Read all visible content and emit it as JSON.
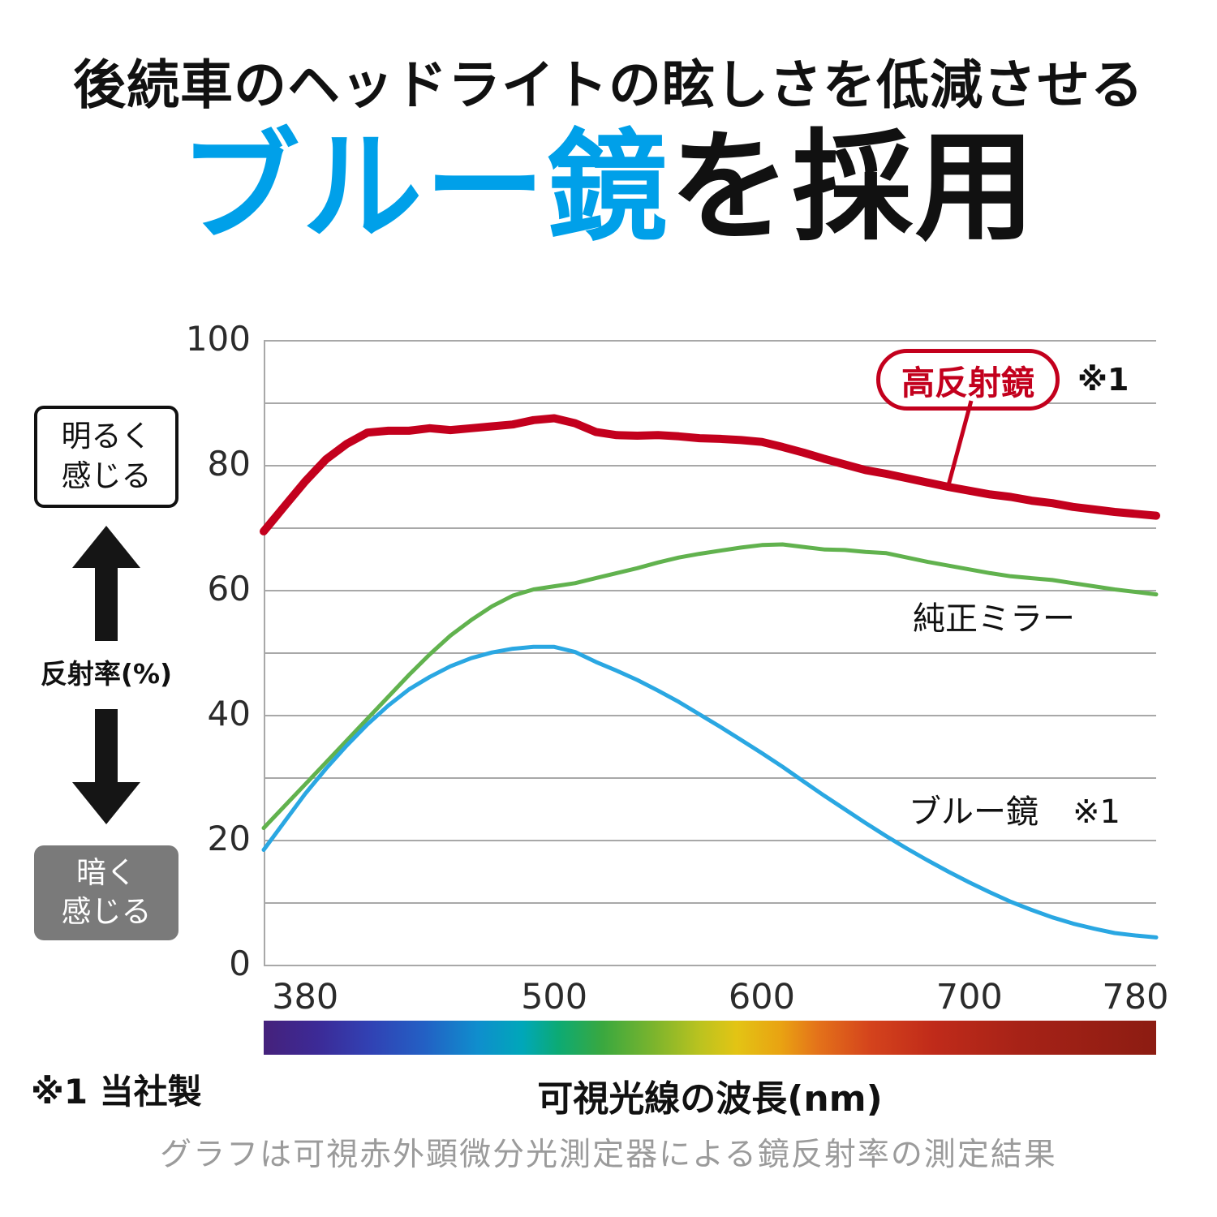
{
  "header": {
    "line1": "後続車のヘッドライトの眩しさを低減させる",
    "line2_highlight": "ブルー鏡",
    "line2_rest": "を採用",
    "highlight_color": "#00a0e9"
  },
  "left_panel": {
    "bright_label": "明るく\n感じる",
    "dark_label": "暗く\n感じる"
  },
  "chart_data": {
    "type": "line",
    "xlabel": "可視光線の波長(nm)",
    "ylabel": "反射率(%)",
    "x_range": [
      360,
      790
    ],
    "y_range": [
      0,
      100
    ],
    "x_ticks": [
      380,
      500,
      600,
      700,
      780
    ],
    "y_ticks": [
      0,
      20,
      40,
      60,
      80,
      100
    ],
    "grid_step": 10,
    "grid": true,
    "legend_position": "callout-on-plot",
    "series": [
      {
        "name": "高反射鏡",
        "note": "※1",
        "color": "#c3001d",
        "stroke_width": 10,
        "points": [
          [
            360,
            69.5
          ],
          [
            365,
            71.5
          ],
          [
            370,
            73.5
          ],
          [
            380,
            77.5
          ],
          [
            390,
            81
          ],
          [
            400,
            83.5
          ],
          [
            410,
            85.3
          ],
          [
            420,
            85.6
          ],
          [
            430,
            85.6
          ],
          [
            440,
            86
          ],
          [
            450,
            85.7
          ],
          [
            460,
            86
          ],
          [
            470,
            86.3
          ],
          [
            480,
            86.6
          ],
          [
            490,
            87.3
          ],
          [
            500,
            87.6
          ],
          [
            510,
            86.8
          ],
          [
            520,
            85.4
          ],
          [
            530,
            84.9
          ],
          [
            540,
            84.8
          ],
          [
            550,
            84.9
          ],
          [
            560,
            84.7
          ],
          [
            570,
            84.4
          ],
          [
            580,
            84.3
          ],
          [
            590,
            84.1
          ],
          [
            600,
            83.8
          ],
          [
            610,
            83
          ],
          [
            620,
            82.1
          ],
          [
            630,
            81.1
          ],
          [
            640,
            80.2
          ],
          [
            650,
            79.3
          ],
          [
            660,
            78.7
          ],
          [
            670,
            78
          ],
          [
            680,
            77.3
          ],
          [
            690,
            76.6
          ],
          [
            700,
            76
          ],
          [
            710,
            75.4
          ],
          [
            720,
            75
          ],
          [
            730,
            74.4
          ],
          [
            740,
            74
          ],
          [
            750,
            73.4
          ],
          [
            760,
            73
          ],
          [
            770,
            72.6
          ],
          [
            780,
            72.3
          ],
          [
            790,
            72
          ]
        ]
      },
      {
        "name": "純正ミラー",
        "note": "",
        "color": "#61b24e",
        "stroke_width": 5,
        "points": [
          [
            360,
            22
          ],
          [
            370,
            25.5
          ],
          [
            380,
            29
          ],
          [
            390,
            32.5
          ],
          [
            400,
            36
          ],
          [
            410,
            39.5
          ],
          [
            420,
            43
          ],
          [
            430,
            46.5
          ],
          [
            440,
            49.8
          ],
          [
            450,
            52.8
          ],
          [
            460,
            55.3
          ],
          [
            470,
            57.5
          ],
          [
            480,
            59.2
          ],
          [
            490,
            60.2
          ],
          [
            500,
            60.7
          ],
          [
            510,
            61.2
          ],
          [
            520,
            62
          ],
          [
            530,
            62.8
          ],
          [
            540,
            63.6
          ],
          [
            550,
            64.5
          ],
          [
            560,
            65.3
          ],
          [
            570,
            65.9
          ],
          [
            580,
            66.4
          ],
          [
            590,
            66.9
          ],
          [
            600,
            67.3
          ],
          [
            610,
            67.4
          ],
          [
            620,
            67
          ],
          [
            630,
            66.6
          ],
          [
            640,
            66.5
          ],
          [
            650,
            66.2
          ],
          [
            660,
            66
          ],
          [
            670,
            65.3
          ],
          [
            680,
            64.6
          ],
          [
            690,
            64
          ],
          [
            700,
            63.4
          ],
          [
            710,
            62.8
          ],
          [
            720,
            62.3
          ],
          [
            730,
            62
          ],
          [
            740,
            61.7
          ],
          [
            750,
            61.2
          ],
          [
            760,
            60.7
          ],
          [
            770,
            60.2
          ],
          [
            780,
            59.8
          ],
          [
            790,
            59.4
          ]
        ]
      },
      {
        "name": "ブルー鏡",
        "note": "※1",
        "color": "#2aa7e2",
        "stroke_width": 5,
        "points": [
          [
            360,
            18.5
          ],
          [
            370,
            23
          ],
          [
            380,
            27.5
          ],
          [
            390,
            31.5
          ],
          [
            400,
            35.2
          ],
          [
            410,
            38.6
          ],
          [
            420,
            41.6
          ],
          [
            430,
            44.2
          ],
          [
            440,
            46.2
          ],
          [
            450,
            47.9
          ],
          [
            460,
            49.2
          ],
          [
            470,
            50.1
          ],
          [
            480,
            50.7
          ],
          [
            490,
            51
          ],
          [
            500,
            51
          ],
          [
            510,
            50.2
          ],
          [
            520,
            48.6
          ],
          [
            530,
            47.2
          ],
          [
            540,
            45.7
          ],
          [
            550,
            44
          ],
          [
            560,
            42.2
          ],
          [
            570,
            40.2
          ],
          [
            580,
            38.2
          ],
          [
            590,
            36.1
          ],
          [
            600,
            34
          ],
          [
            610,
            31.8
          ],
          [
            620,
            29.5
          ],
          [
            630,
            27.2
          ],
          [
            640,
            25
          ],
          [
            650,
            22.8
          ],
          [
            660,
            20.7
          ],
          [
            670,
            18.7
          ],
          [
            680,
            16.8
          ],
          [
            690,
            15
          ],
          [
            700,
            13.3
          ],
          [
            710,
            11.7
          ],
          [
            720,
            10.2
          ],
          [
            730,
            8.9
          ],
          [
            740,
            7.7
          ],
          [
            750,
            6.7
          ],
          [
            760,
            5.9
          ],
          [
            770,
            5.2
          ],
          [
            780,
            4.8
          ],
          [
            790,
            4.5
          ]
        ]
      }
    ]
  },
  "footer": {
    "note1": "※1 当社製",
    "caption": "グラフは可視赤外顕微分光測定器による鏡反射率の測定結果"
  }
}
